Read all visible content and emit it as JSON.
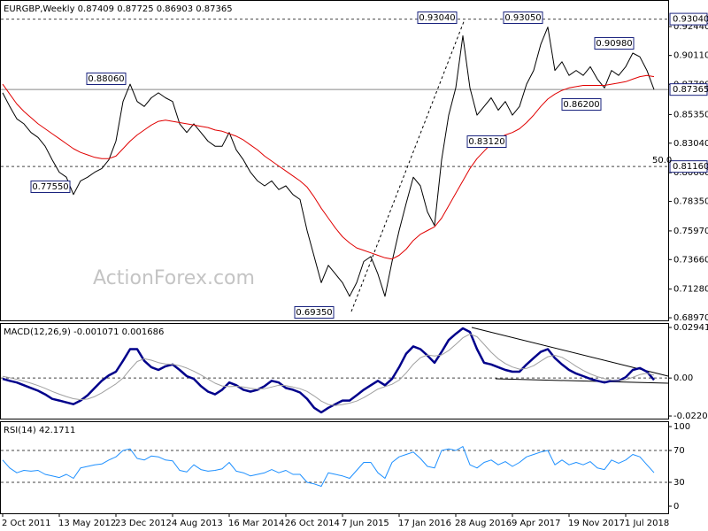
{
  "chart_data": [
    {
      "type": "line",
      "title": "EURGBP,Weekly  0.87409 0.87725 0.86903 0.87365",
      "watermark": "ActionForex.com",
      "ylim": [
        0.6876,
        0.9458
      ],
      "yticks": [
        {
          "value": 0.9244,
          "label": "0.92440"
        },
        {
          "value": 0.9011,
          "label": "0.90110"
        },
        {
          "value": 0.8778,
          "label": "0.87780"
        },
        {
          "value": 0.8535,
          "label": "0.85350"
        },
        {
          "value": 0.8304,
          "label": "0.83040"
        },
        {
          "value": 0.8066,
          "label": "0.80660"
        },
        {
          "value": 0.7835,
          "label": "0.78350"
        },
        {
          "value": 0.7597,
          "label": "0.75970"
        },
        {
          "value": 0.7366,
          "label": "0.73660"
        },
        {
          "value": 0.7128,
          "label": "0.71280"
        },
        {
          "value": 0.6897,
          "label": "0.68970"
        }
      ],
      "levels": [
        {
          "value": 0.9304,
          "label": "0.93040",
          "style": "dashed"
        },
        {
          "value": 0.87365,
          "label": "0.87365",
          "style": "solid"
        },
        {
          "value": 0.8116,
          "label": "0.81160",
          "style": "dashed",
          "note": "50.0"
        }
      ],
      "annotations": [
        {
          "value": 0.8806,
          "label": "0.88060"
        },
        {
          "value": 0.7755,
          "label": "0.77550"
        },
        {
          "value": 0.6935,
          "label": "0.69350"
        },
        {
          "value": 0.9304,
          "label": "0.93040"
        },
        {
          "value": 0.9305,
          "label": "0.93050"
        },
        {
          "value": 0.8312,
          "label": "0.83120"
        },
        {
          "value": 0.9098,
          "label": "0.90980"
        },
        {
          "value": 0.862,
          "label": "0.86200"
        }
      ],
      "series": [
        {
          "color": "#000000",
          "width": 1,
          "values": [
            0.871,
            0.86,
            0.85,
            0.846,
            0.839,
            0.835,
            0.828,
            0.817,
            0.807,
            0.803,
            0.789,
            0.8,
            0.803,
            0.807,
            0.81,
            0.817,
            0.832,
            0.864,
            0.878,
            0.864,
            0.86,
            0.867,
            0.871,
            0.867,
            0.864,
            0.846,
            0.839,
            0.846,
            0.839,
            0.832,
            0.828,
            0.828,
            0.839,
            0.825,
            0.817,
            0.807,
            0.8,
            0.796,
            0.8,
            0.793,
            0.796,
            0.789,
            0.785,
            0.76,
            0.739,
            0.718,
            0.732,
            0.725,
            0.718,
            0.707,
            0.718,
            0.735,
            0.739,
            0.725,
            0.707,
            0.735,
            0.76,
            0.782,
            0.803,
            0.796,
            0.775,
            0.764,
            0.817,
            0.853,
            0.875,
            0.917,
            0.875,
            0.853,
            0.86,
            0.867,
            0.857,
            0.864,
            0.853,
            0.86,
            0.878,
            0.889,
            0.91,
            0.924,
            0.889,
            0.896,
            0.885,
            0.889,
            0.885,
            0.892,
            0.882,
            0.875,
            0.889,
            0.885,
            0.892,
            0.903,
            0.9,
            0.889,
            0.87365
          ]
        },
        {
          "color": "#e00000",
          "width": 1,
          "values": [
            0.878,
            0.87,
            0.862,
            0.856,
            0.851,
            0.846,
            0.842,
            0.838,
            0.834,
            0.83,
            0.826,
            0.823,
            0.821,
            0.819,
            0.818,
            0.818,
            0.82,
            0.826,
            0.832,
            0.837,
            0.841,
            0.845,
            0.848,
            0.849,
            0.848,
            0.847,
            0.846,
            0.845,
            0.844,
            0.843,
            0.841,
            0.84,
            0.838,
            0.836,
            0.833,
            0.829,
            0.825,
            0.82,
            0.816,
            0.812,
            0.808,
            0.804,
            0.8,
            0.795,
            0.787,
            0.778,
            0.77,
            0.762,
            0.755,
            0.75,
            0.746,
            0.744,
            0.742,
            0.74,
            0.738,
            0.737,
            0.74,
            0.745,
            0.752,
            0.757,
            0.76,
            0.763,
            0.77,
            0.78,
            0.79,
            0.8,
            0.81,
            0.818,
            0.824,
            0.83,
            0.834,
            0.837,
            0.839,
            0.842,
            0.847,
            0.853,
            0.86,
            0.866,
            0.87,
            0.873,
            0.875,
            0.876,
            0.877,
            0.877,
            0.877,
            0.877,
            0.878,
            0.879,
            0.88,
            0.882,
            0.884,
            0.885,
            0.884
          ]
        }
      ]
    },
    {
      "type": "line",
      "title": "MACD(12,26,9) -0.001071 0.001686",
      "ylim": [
        -0.0236,
        0.032
      ],
      "yticks": [
        0.029412,
        {
          "value": 0,
          "label": "0.00"
        },
        -0.022074
      ],
      "levels": [
        0
      ],
      "series": [
        {
          "color": "#00008b",
          "width": 2.5,
          "values": [
            -0.0005,
            -0.0016,
            -0.0026,
            -0.0042,
            -0.0058,
            -0.0074,
            -0.0095,
            -0.0121,
            -0.0131,
            -0.0142,
            -0.0152,
            -0.0131,
            -0.01,
            -0.0058,
            -0.0016,
            0.0016,
            0.0037,
            0.01,
            0.0168,
            0.0168,
            0.01,
            0.0063,
            0.0047,
            0.0068,
            0.0079,
            0.0047,
            0.0011,
            -0.0005,
            -0.0047,
            -0.0079,
            -0.0095,
            -0.0068,
            -0.0026,
            -0.0042,
            -0.0068,
            -0.0079,
            -0.0068,
            -0.0047,
            -0.0016,
            -0.0026,
            -0.0058,
            -0.0068,
            -0.0084,
            -0.0121,
            -0.0173,
            -0.02,
            -0.0173,
            -0.0152,
            -0.0131,
            -0.0131,
            -0.01,
            -0.0068,
            -0.0042,
            -0.0016,
            -0.0042,
            -0.0005,
            0.0063,
            0.0142,
            0.0184,
            0.0168,
            0.0131,
            0.0089,
            0.0152,
            0.0221,
            0.0257,
            0.0289,
            0.0268,
            0.0168,
            0.0089,
            0.0079,
            0.0063,
            0.0047,
            0.0037,
            0.0037,
            0.0079,
            0.0116,
            0.0152,
            0.0168,
            0.0116,
            0.0079,
            0.0047,
            0.0026,
            0.0011,
            -0.0005,
            -0.0016,
            -0.0026,
            -0.0016,
            -0.0016,
            0.0005,
            0.0047,
            0.0058,
            0.0037,
            -0.0011
          ]
        },
        {
          "color": "#a0a0a0",
          "width": 1,
          "values": [
            0.001,
            0.0002,
            -0.0008,
            -0.0018,
            -0.003,
            -0.0044,
            -0.006,
            -0.0078,
            -0.0094,
            -0.0108,
            -0.012,
            -0.0126,
            -0.0122,
            -0.0108,
            -0.0086,
            -0.006,
            -0.0034,
            0.0,
            0.005,
            0.0096,
            0.0112,
            0.0104,
            0.009,
            0.0082,
            0.008,
            0.0072,
            0.0058,
            0.004,
            0.0018,
            -0.0006,
            -0.003,
            -0.0046,
            -0.005,
            -0.0048,
            -0.0052,
            -0.006,
            -0.0064,
            -0.0062,
            -0.0052,
            -0.0042,
            -0.0044,
            -0.0052,
            -0.0062,
            -0.0078,
            -0.0104,
            -0.0134,
            -0.0154,
            -0.016,
            -0.0154,
            -0.0146,
            -0.0134,
            -0.0114,
            -0.009,
            -0.0064,
            -0.005,
            -0.0036,
            -0.0012,
            0.003,
            0.008,
            0.0118,
            0.0134,
            0.0128,
            0.0134,
            0.016,
            0.0196,
            0.0234,
            0.0256,
            0.024,
            0.0196,
            0.015,
            0.0112,
            0.0084,
            0.0064,
            0.0052,
            0.0056,
            0.0072,
            0.0098,
            0.0124,
            0.0132,
            0.012,
            0.0096,
            0.0068,
            0.0044,
            0.0024,
            0.0008,
            -0.0004,
            -0.0012,
            -0.0016,
            -0.001,
            0.0004,
            0.002,
            0.0028,
            0.0017
          ]
        }
      ]
    },
    {
      "type": "line",
      "title": "RSI(14) 42.1711",
      "ylim": [
        -8.9,
        106.7
      ],
      "yticks": [
        100,
        70,
        30,
        0
      ],
      "levels": [
        70,
        30
      ],
      "categories": [
        "2 Oct 2011",
        null,
        null,
        null,
        null,
        null,
        null,
        null,
        "13 May 2012",
        null,
        null,
        null,
        null,
        null,
        null,
        null,
        "23 Dec 2012",
        null,
        null,
        null,
        null,
        null,
        null,
        null,
        "4 Aug 2013",
        null,
        null,
        null,
        null,
        null,
        null,
        null,
        "16 Mar 2014",
        null,
        null,
        null,
        null,
        null,
        null,
        null,
        "26 Oct 2014",
        null,
        null,
        null,
        null,
        null,
        null,
        null,
        "7 Jun 2015",
        null,
        null,
        null,
        null,
        null,
        null,
        null,
        "17 Jan 2016",
        null,
        null,
        null,
        null,
        null,
        null,
        null,
        "28 Aug 2016",
        null,
        null,
        null,
        null,
        null,
        null,
        null,
        "9 Apr 2017",
        null,
        null,
        null,
        null,
        null,
        null,
        null,
        "19 Nov 2017",
        null,
        null,
        null,
        null,
        null,
        null,
        null,
        "1 Jul 2018",
        null,
        null,
        null,
        null
      ],
      "series": [
        {
          "color": "#1e90ff",
          "width": 1,
          "values": [
            58,
            48,
            42,
            45,
            44,
            45,
            40,
            38,
            36,
            40,
            35,
            48,
            50,
            52,
            53,
            58,
            62,
            70,
            72,
            60,
            58,
            63,
            62,
            58,
            57,
            45,
            43,
            52,
            46,
            44,
            45,
            47,
            55,
            44,
            42,
            38,
            40,
            42,
            46,
            42,
            45,
            40,
            40,
            30,
            28,
            25,
            42,
            40,
            38,
            35,
            45,
            55,
            55,
            42,
            35,
            55,
            62,
            65,
            68,
            60,
            50,
            48,
            70,
            72,
            70,
            75,
            52,
            48,
            55,
            58,
            52,
            56,
            50,
            55,
            62,
            65,
            68,
            70,
            52,
            58,
            52,
            55,
            52,
            56,
            48,
            46,
            58,
            54,
            58,
            65,
            62,
            52,
            42.1711
          ]
        }
      ]
    }
  ]
}
